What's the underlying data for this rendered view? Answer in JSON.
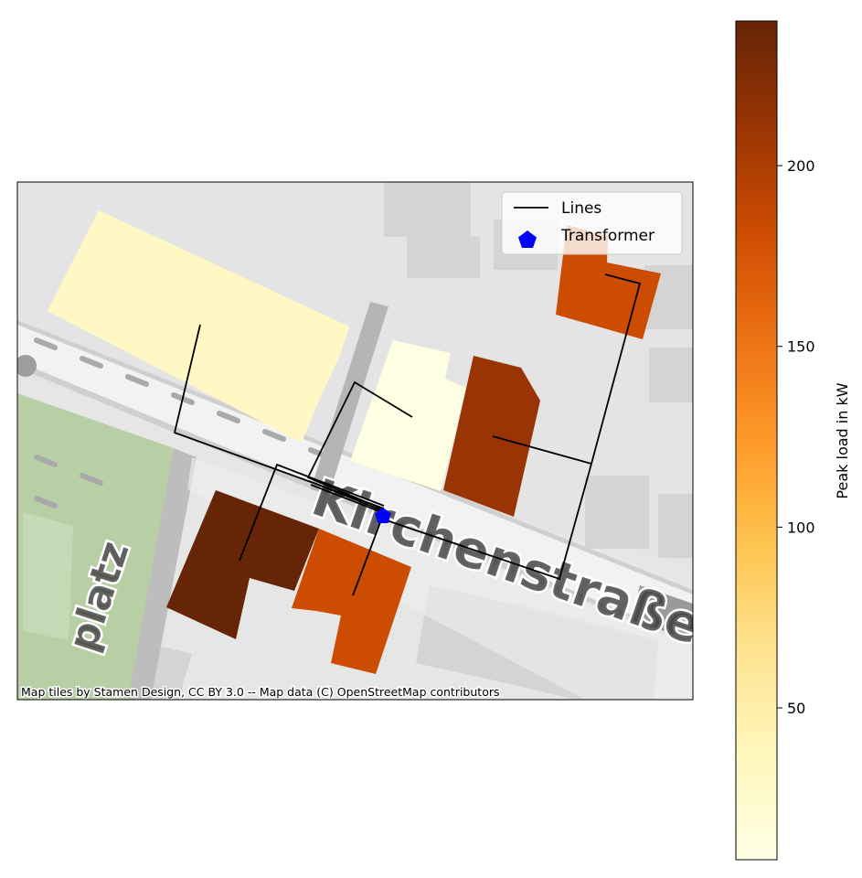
{
  "map": {
    "street_label_main": "Kirchenstraße",
    "street_label_side": "platz",
    "attribution": "Map tiles by Stamen Design, CC BY 3.0 -- Map data (C) OpenStreetMap contributors"
  },
  "legend": {
    "lines_label": "Lines",
    "transformer_label": "Transformer",
    "lines_color": "#000000",
    "transformer_color": "#0000ff"
  },
  "colorbar": {
    "label": "Peak load in kW",
    "colormap": "YlOrBr",
    "vmin": 8,
    "vmax": 240,
    "ticks": [
      {
        "value": 50,
        "label": "50"
      },
      {
        "value": 100,
        "label": "100"
      },
      {
        "value": 150,
        "label": "150"
      },
      {
        "value": 200,
        "label": "200"
      }
    ]
  },
  "buildings": [
    {
      "id": "b1",
      "peak_load_kw": 30,
      "color": "#fff7c4"
    },
    {
      "id": "b2",
      "peak_load_kw": 10,
      "color": "#ffffe3"
    },
    {
      "id": "b3",
      "peak_load_kw": 215,
      "color": "#993404"
    },
    {
      "id": "b4",
      "peak_load_kw": 190,
      "color": "#cc4c02"
    },
    {
      "id": "b5",
      "peak_load_kw": 240,
      "color": "#662506"
    },
    {
      "id": "b6",
      "peak_load_kw": 190,
      "color": "#cc4c02"
    }
  ]
}
